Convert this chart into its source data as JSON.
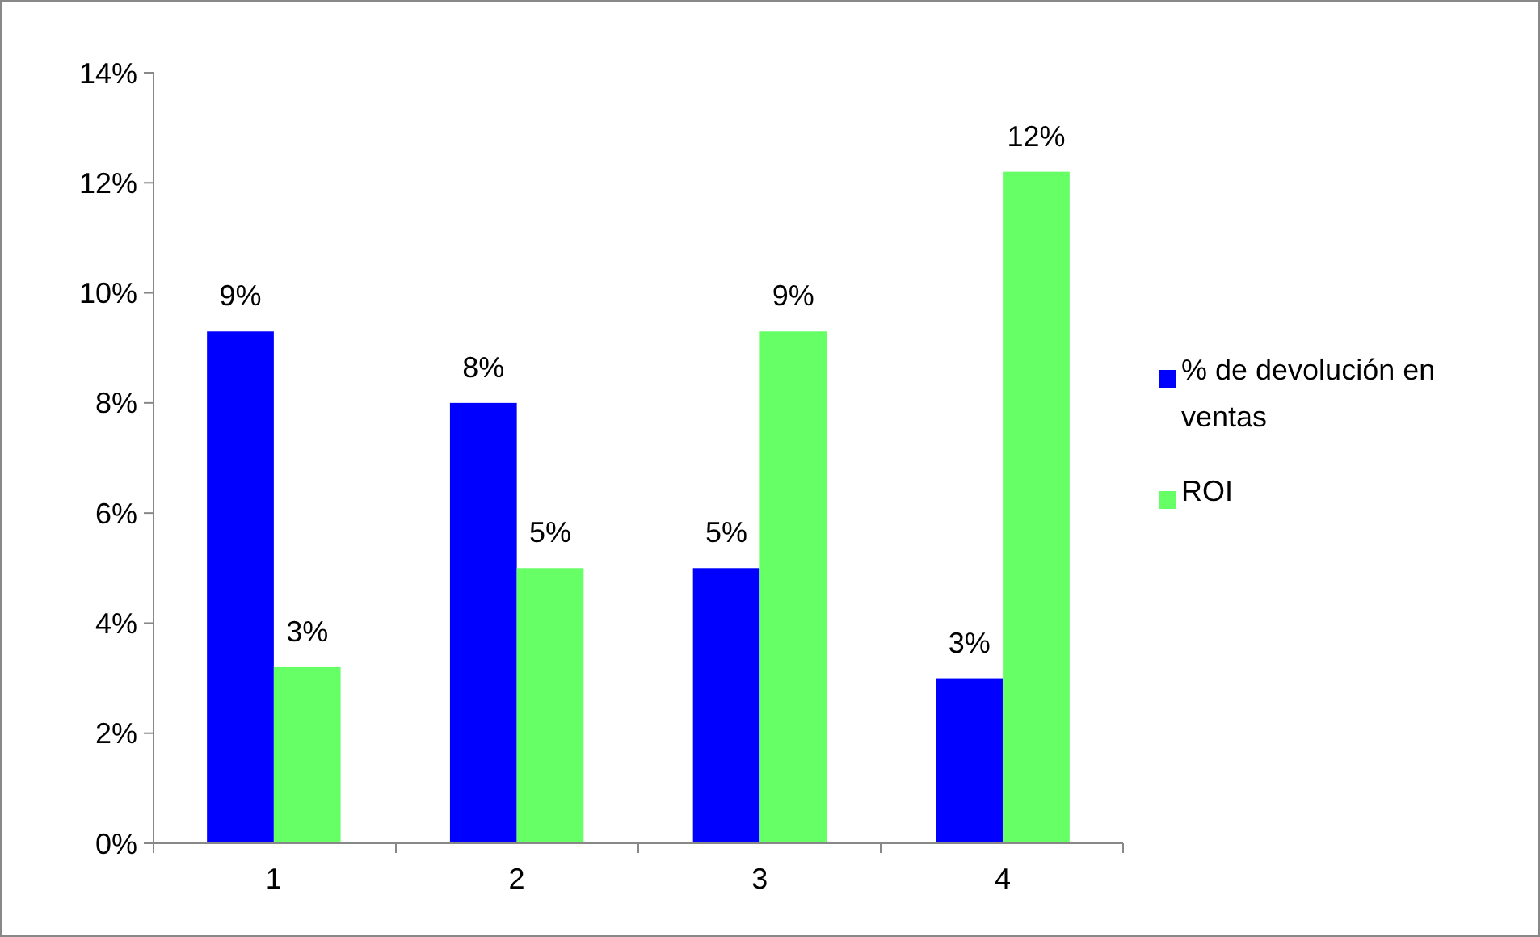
{
  "chart_data": {
    "type": "bar",
    "categories": [
      "1",
      "2",
      "3",
      "4"
    ],
    "series": [
      {
        "name": "% de devolución en ventas",
        "color": "#0000ff",
        "values": [
          9.3,
          8.0,
          5.0,
          3.0
        ],
        "value_labels": [
          "9%",
          "8%",
          "5%",
          "3%"
        ]
      },
      {
        "name": "ROI",
        "color": "#66ff66",
        "values": [
          3.2,
          5.0,
          9.3,
          12.2
        ],
        "value_labels": [
          "3%",
          "5%",
          "9%",
          "12%"
        ]
      }
    ],
    "ylim": [
      0,
      14
    ],
    "yticks": [
      {
        "value": 0,
        "label": "0%"
      },
      {
        "value": 2,
        "label": "2%"
      },
      {
        "value": 4,
        "label": "4%"
      },
      {
        "value": 6,
        "label": "6%"
      },
      {
        "value": 8,
        "label": "8%"
      },
      {
        "value": 10,
        "label": "10%"
      },
      {
        "value": 12,
        "label": "12%"
      },
      {
        "value": 14,
        "label": "14%"
      }
    ],
    "grid": false,
    "legend": "right"
  }
}
